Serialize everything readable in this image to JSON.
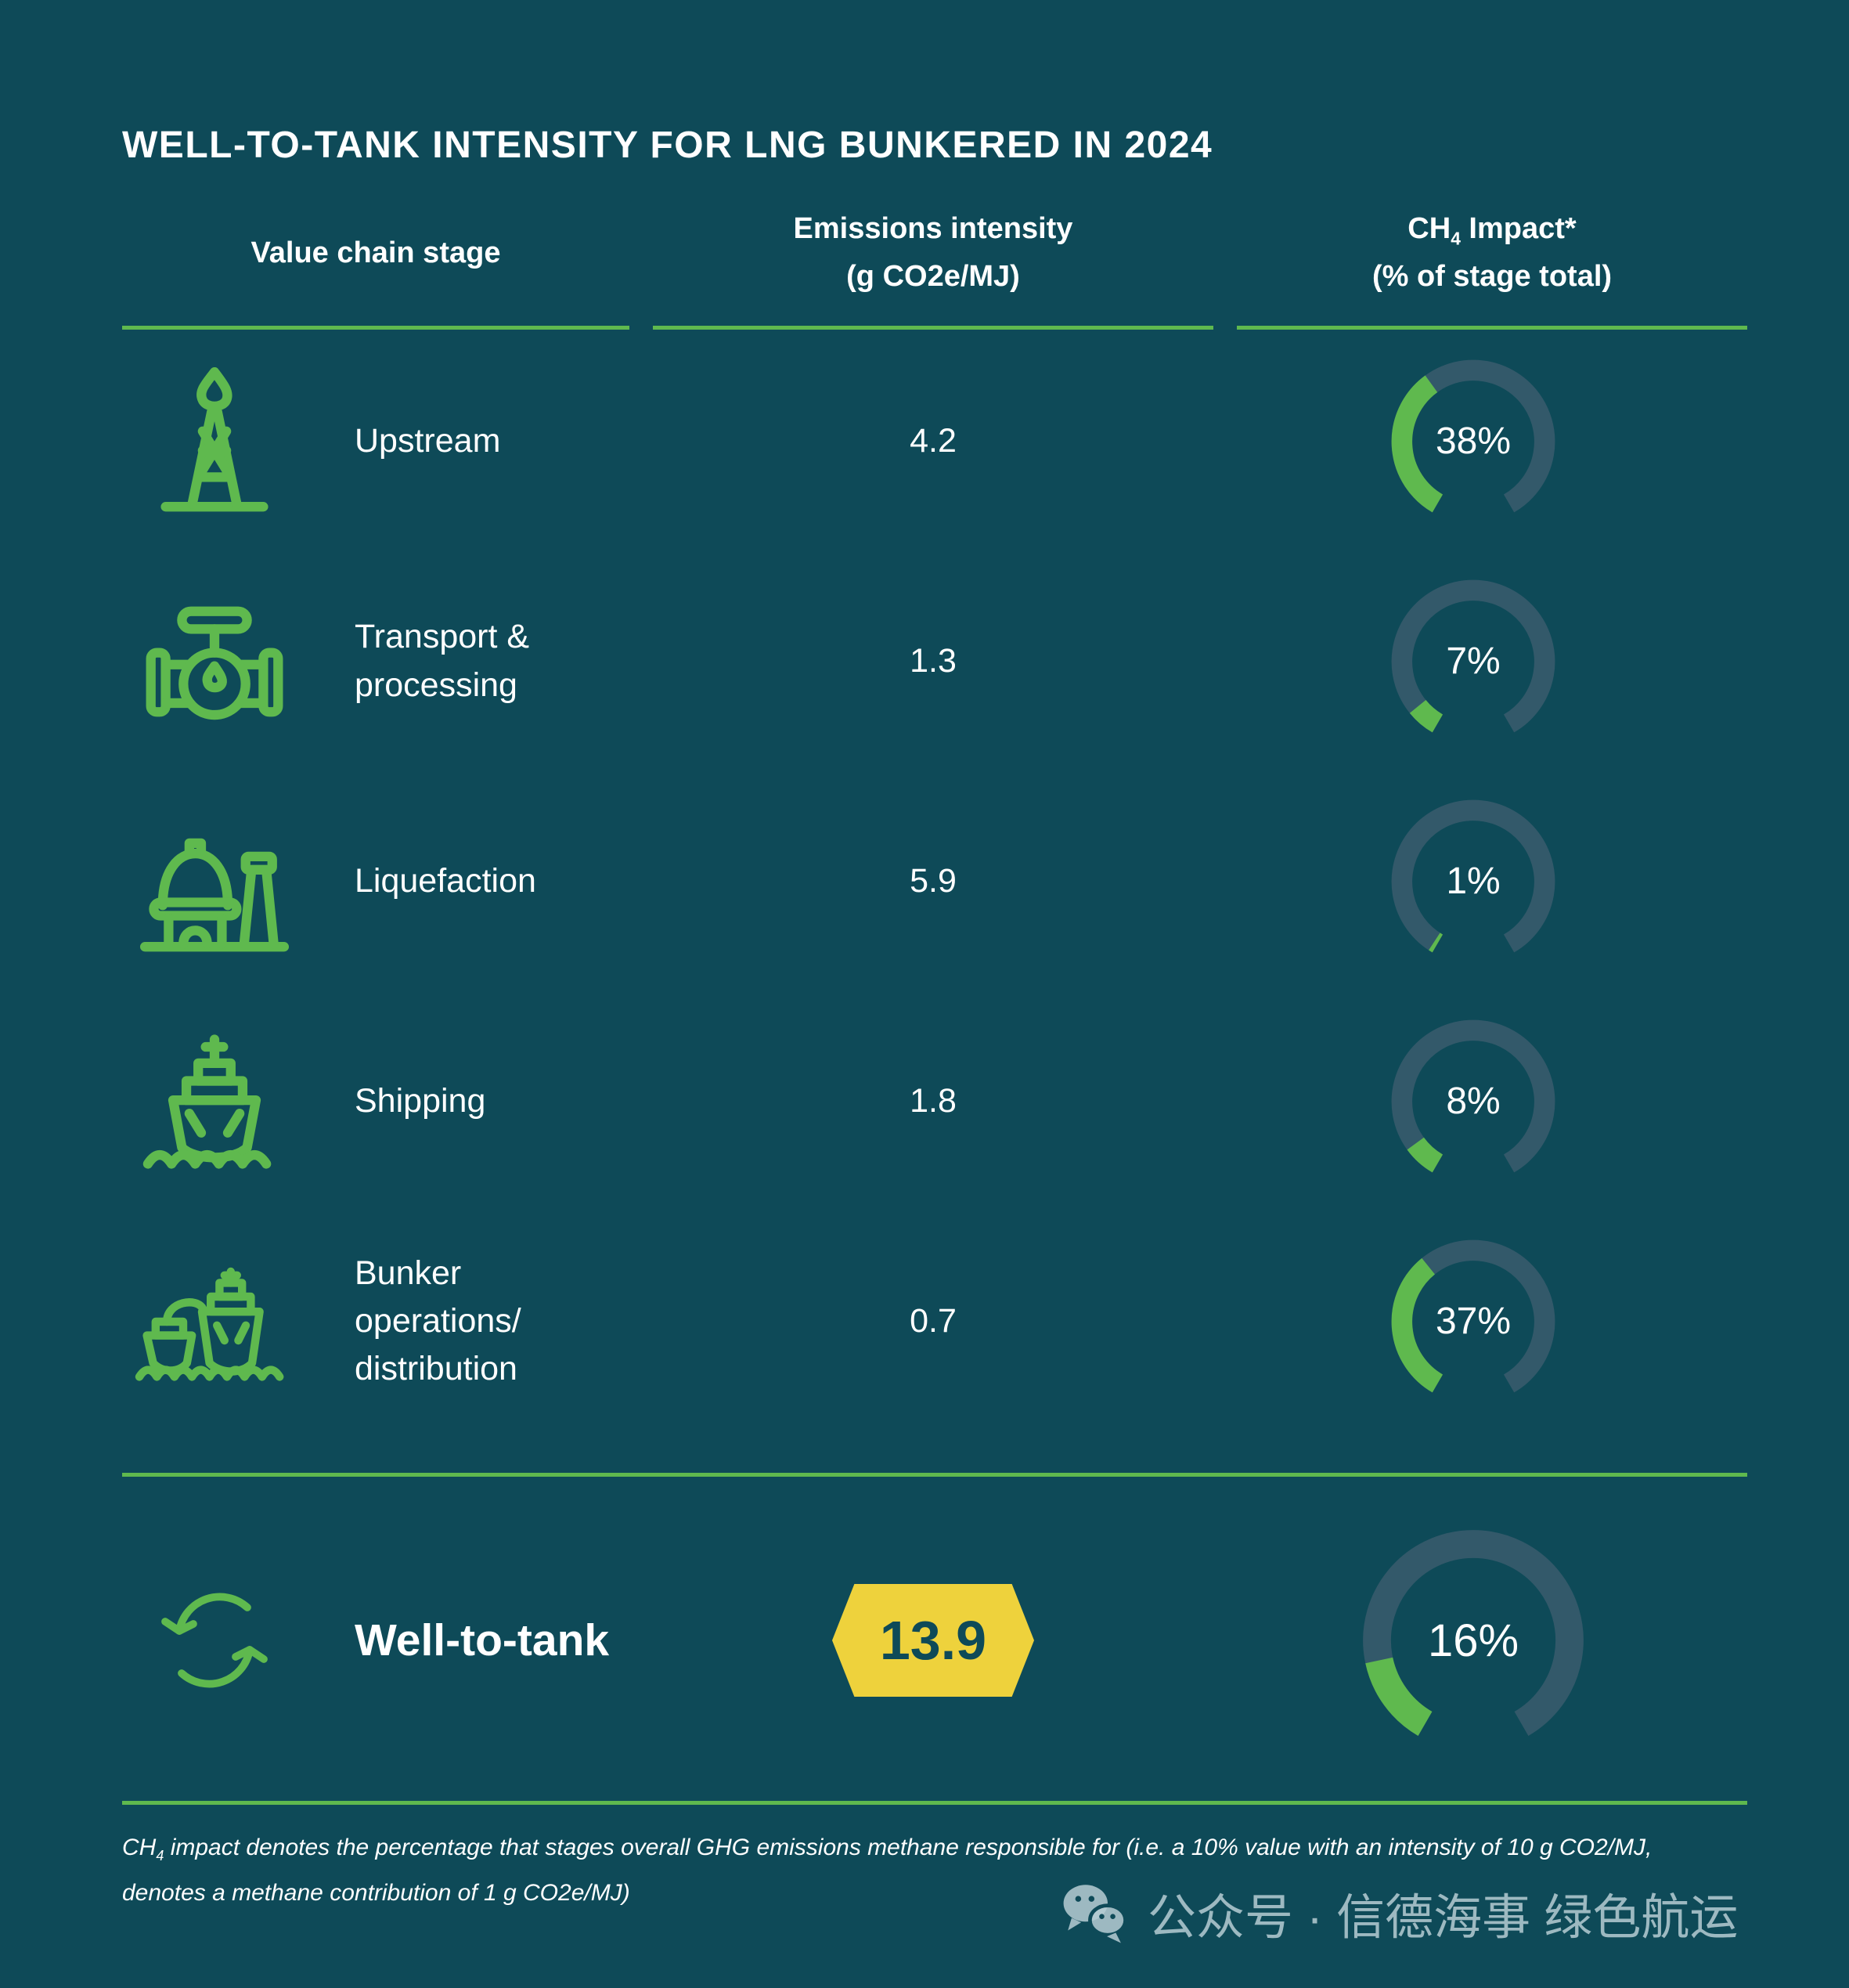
{
  "title": "WELL-TO-TANK INTENSITY FOR LNG BUNKERED IN 2024",
  "header": {
    "col_stage": "Value chain stage",
    "col_intensity_line1": "Emissions intensity",
    "col_intensity_line2": "(g CO2e/MJ)",
    "col_ch4_prefix": "CH",
    "col_ch4_sub": "4",
    "col_ch4_suffix": " Impact*",
    "col_ch4_line2": "(% of stage total)"
  },
  "rows": [
    {
      "icon": "oil-rig-icon",
      "label": "Upstream",
      "intensity": "4.2",
      "ch4_pct": 38,
      "ch4_label": "38%"
    },
    {
      "icon": "pipeline-valve-icon",
      "label": "Transport & processing",
      "intensity": "1.3",
      "ch4_pct": 7,
      "ch4_label": "7%"
    },
    {
      "icon": "liquefaction-plant-icon",
      "label": "Liquefaction",
      "intensity": "5.9",
      "ch4_pct": 1,
      "ch4_label": "1%"
    },
    {
      "icon": "ship-icon",
      "label": "Shipping",
      "intensity": "1.8",
      "ch4_pct": 8,
      "ch4_label": "8%"
    },
    {
      "icon": "bunker-ships-icon",
      "label": "Bunker operations/",
      "label_line2": "distribution",
      "intensity": "0.7",
      "ch4_pct": 37,
      "ch4_label": "37%"
    }
  ],
  "total": {
    "icon": "cycle-arrows-icon",
    "label": "Well-to-tank",
    "intensity": "13.9",
    "ch4_pct": 16,
    "ch4_label": "16%"
  },
  "footnote": {
    "prefix": "CH",
    "sub": "4",
    "line1_rest": " impact denotes the percentage that stages overall GHG emissions methane responsible for (i.e. a 10% value with an intensity of 10 g CO2/MJ,",
    "line2": "denotes a methane contribution of 1 g CO2e/MJ)"
  },
  "watermark": {
    "icon": "wechat-icon",
    "text": "公众号 · 信德海事 绿色航运"
  },
  "colors": {
    "background": "#0e4a58",
    "ring_track": "#33596a",
    "green": "#5fb94e",
    "yellow": "#eed23c",
    "badge_text": "#0e4a58",
    "text": "#ffffff",
    "watermark": "#b6cdd3"
  },
  "chart_data": {
    "type": "table",
    "title": "WELL-TO-TANK INTENSITY FOR LNG BUNKERED IN 2024",
    "columns": [
      "Value chain stage",
      "Emissions intensity (g CO2e/MJ)",
      "CH4 Impact* (% of stage total)"
    ],
    "rows": [
      {
        "stage": "Upstream",
        "emissions_intensity": 4.2,
        "ch4_impact_pct": 38
      },
      {
        "stage": "Transport & processing",
        "emissions_intensity": 1.3,
        "ch4_impact_pct": 7
      },
      {
        "stage": "Liquefaction",
        "emissions_intensity": 5.9,
        "ch4_impact_pct": 1
      },
      {
        "stage": "Shipping",
        "emissions_intensity": 1.8,
        "ch4_impact_pct": 8
      },
      {
        "stage": "Bunker operations/distribution",
        "emissions_intensity": 0.7,
        "ch4_impact_pct": 37
      },
      {
        "stage": "Well-to-tank (total)",
        "emissions_intensity": 13.9,
        "ch4_impact_pct": 16
      }
    ],
    "gauge_style": {
      "sweep_deg": 300,
      "gap_position": "bottom",
      "fill_direction": "clockwise-from-bottom-left",
      "fill_color": "#5fb94e",
      "track_color": "#33596a"
    },
    "legend_position": "none",
    "grid": false
  }
}
